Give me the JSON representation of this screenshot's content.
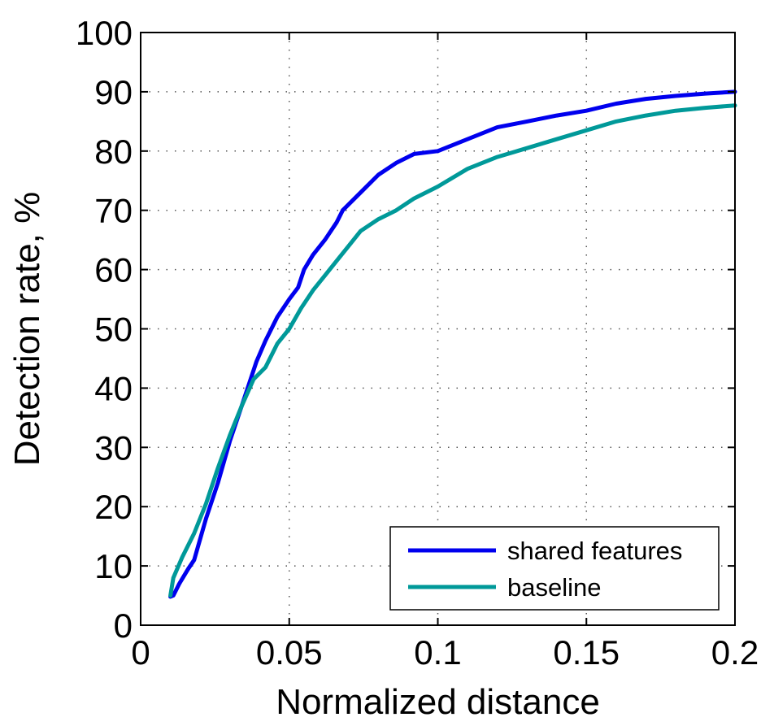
{
  "chart_data": {
    "type": "line",
    "title": "",
    "xlabel": "Normalized distance",
    "ylabel": "Detection rate, %",
    "xlim": [
      0,
      0.2
    ],
    "ylim": [
      0,
      100
    ],
    "grid": true,
    "legend_position": "bottom-right",
    "xticks": [
      0,
      0.05,
      0.1,
      0.15,
      0.2
    ],
    "xtick_labels": [
      "0",
      "0.05",
      "0.1",
      "0.15",
      "0.2"
    ],
    "yticks": [
      0,
      10,
      20,
      30,
      40,
      50,
      60,
      70,
      80,
      90,
      100
    ],
    "ytick_labels": [
      "0",
      "10",
      "20",
      "30",
      "40",
      "50",
      "60",
      "70",
      "80",
      "90",
      "100"
    ],
    "series": [
      {
        "name": "shared features",
        "color": "#0000ee",
        "x": [
          0.01,
          0.011,
          0.013,
          0.016,
          0.018,
          0.022,
          0.026,
          0.03,
          0.034,
          0.036,
          0.039,
          0.042,
          0.046,
          0.05,
          0.053,
          0.055,
          0.058,
          0.062,
          0.066,
          0.068,
          0.074,
          0.08,
          0.086,
          0.092,
          0.1,
          0.11,
          0.12,
          0.13,
          0.14,
          0.15,
          0.16,
          0.17,
          0.18,
          0.19,
          0.2
        ],
        "y": [
          4.8,
          5.0,
          7.0,
          9.5,
          11.0,
          18.0,
          24.0,
          31.0,
          37.0,
          40.0,
          44.5,
          48.0,
          52.0,
          55.0,
          57.0,
          60.0,
          62.5,
          65.0,
          68.0,
          70.0,
          73.0,
          76.0,
          78.0,
          79.5,
          80.0,
          82.0,
          84.0,
          85.0,
          86.0,
          86.8,
          88.0,
          88.8,
          89.3,
          89.7,
          90.0
        ]
      },
      {
        "name": "baseline",
        "color": "#009999",
        "x": [
          0.01,
          0.011,
          0.014,
          0.018,
          0.022,
          0.026,
          0.03,
          0.034,
          0.038,
          0.042,
          0.046,
          0.05,
          0.054,
          0.058,
          0.062,
          0.066,
          0.07,
          0.074,
          0.08,
          0.086,
          0.092,
          0.1,
          0.11,
          0.12,
          0.13,
          0.14,
          0.15,
          0.16,
          0.17,
          0.18,
          0.19,
          0.2
        ],
        "y": [
          5.0,
          8.0,
          11.5,
          15.5,
          20.5,
          26.5,
          32.0,
          37.0,
          41.5,
          43.5,
          47.5,
          50.0,
          53.5,
          56.5,
          59.0,
          61.5,
          64.0,
          66.5,
          68.5,
          70.0,
          72.0,
          74.0,
          77.0,
          79.0,
          80.5,
          82.0,
          83.5,
          85.0,
          86.0,
          86.8,
          87.3,
          87.7
        ]
      }
    ]
  }
}
